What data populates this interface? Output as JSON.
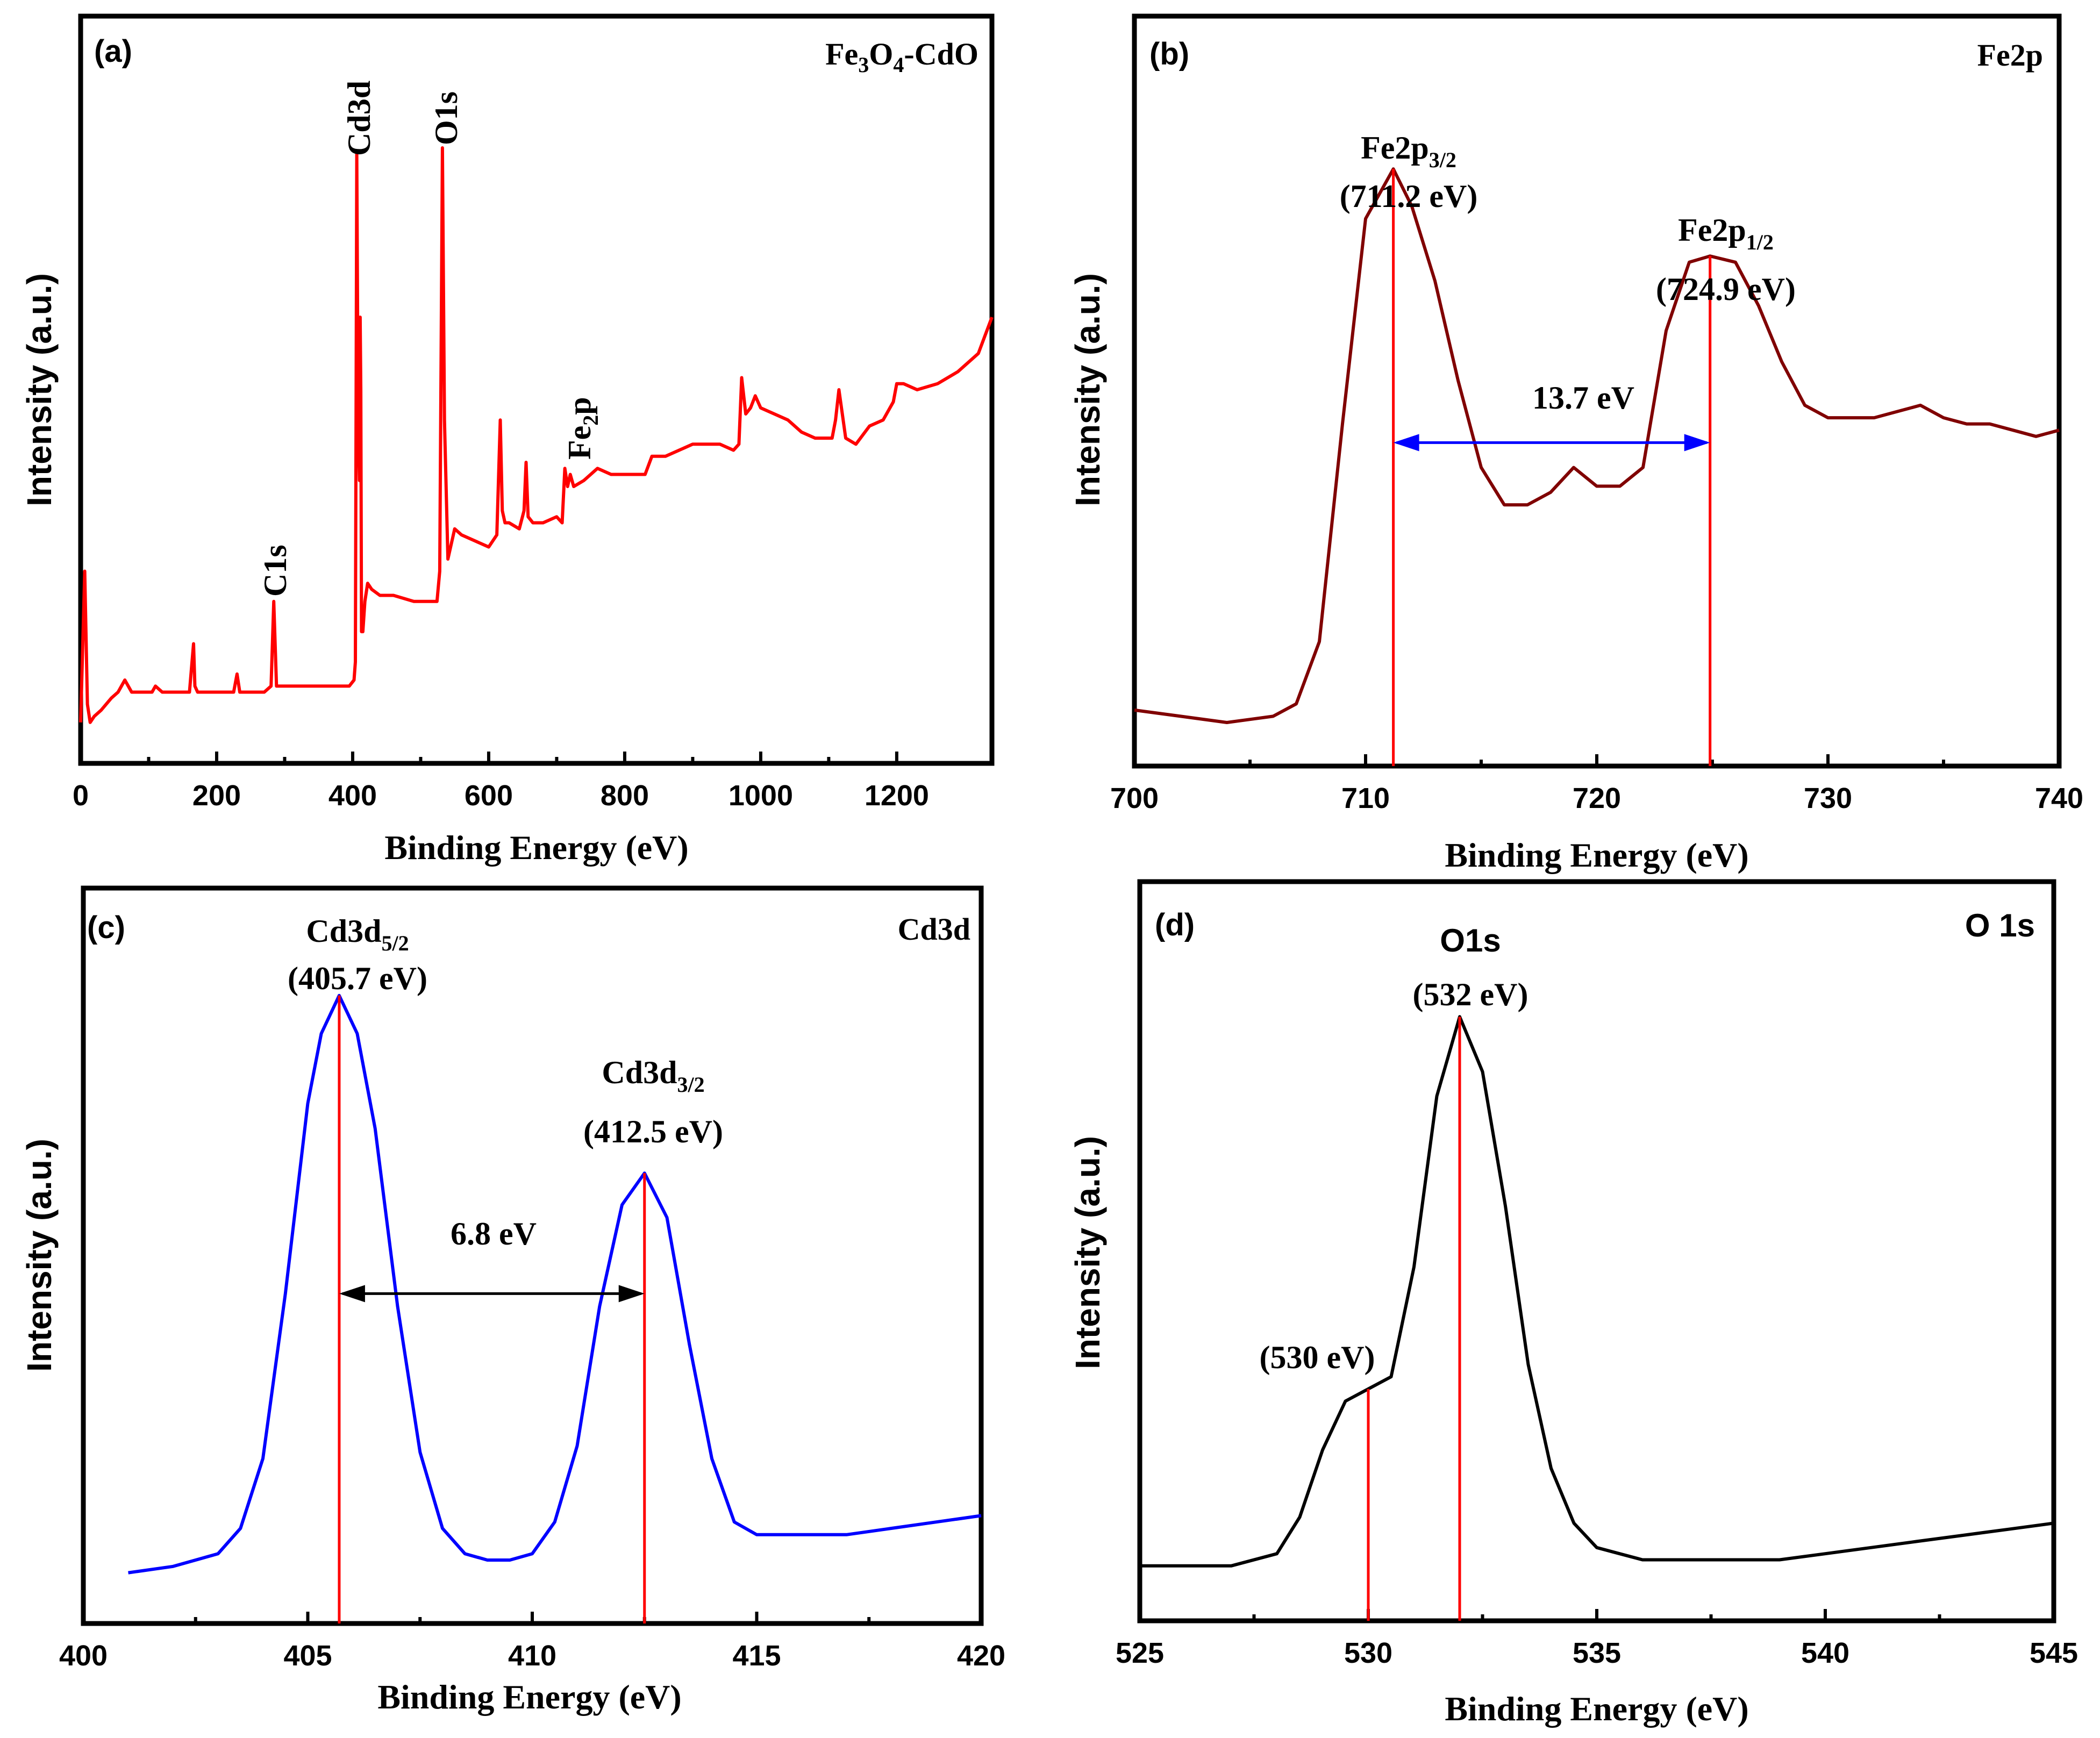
{
  "chart_data": [
    {
      "type": "line",
      "panel_id": "(a)",
      "title": "Fe3O4-CdO",
      "xlabel": "Binding Energy (eV)",
      "ylabel": "Intensity (a.u.)",
      "xlim": [
        0,
        1340
      ],
      "ylim": [
        0,
        1
      ],
      "xticks": [
        0,
        200,
        400,
        600,
        800,
        1000,
        1200
      ],
      "color": "#ff0000",
      "series": [
        {
          "name": "Fe3O4-CdO survey",
          "x": [
            0,
            6,
            10,
            14,
            20,
            30,
            45,
            55,
            65,
            75,
            90,
            105,
            110,
            120,
            140,
            160,
            166,
            168,
            172,
            180,
            200,
            225,
            230,
            234,
            238,
            250,
            270,
            280,
            284,
            288,
            295,
            310,
            340,
            370,
            395,
            402,
            404,
            406,
            408,
            410,
            411,
            412,
            413,
            415,
            418,
            422,
            428,
            440,
            460,
            490,
            510,
            524,
            528,
            530,
            532,
            535,
            540,
            550,
            560,
            580,
            600,
            612,
            617,
            620,
            624,
            630,
            645,
            652,
            655,
            658,
            665,
            680,
            700,
            708,
            712,
            716,
            720,
            725,
            740,
            760,
            780,
            800,
            820,
            830,
            840,
            860,
            880,
            900,
            920,
            940,
            960,
            968,
            972,
            978,
            985,
            992,
            1000,
            1020,
            1040,
            1060,
            1080,
            1095,
            1105,
            1110,
            1115,
            1125,
            1140,
            1160,
            1180,
            1195,
            1200,
            1210,
            1230,
            1260,
            1290,
            1320,
            1340
          ],
          "y": [
            0.05,
            0.3,
            0.08,
            0.05,
            0.06,
            0.07,
            0.09,
            0.1,
            0.12,
            0.1,
            0.1,
            0.1,
            0.11,
            0.1,
            0.1,
            0.1,
            0.18,
            0.11,
            0.1,
            0.1,
            0.1,
            0.1,
            0.13,
            0.1,
            0.1,
            0.1,
            0.1,
            0.11,
            0.25,
            0.11,
            0.11,
            0.11,
            0.11,
            0.11,
            0.11,
            0.12,
            0.15,
            0.99,
            0.55,
            0.45,
            0.72,
            0.6,
            0.2,
            0.2,
            0.25,
            0.28,
            0.27,
            0.26,
            0.26,
            0.25,
            0.25,
            0.25,
            0.3,
            0.65,
            1.0,
            0.55,
            0.32,
            0.37,
            0.36,
            0.35,
            0.34,
            0.36,
            0.55,
            0.4,
            0.38,
            0.38,
            0.37,
            0.4,
            0.48,
            0.39,
            0.38,
            0.38,
            0.39,
            0.38,
            0.47,
            0.44,
            0.46,
            0.44,
            0.45,
            0.47,
            0.46,
            0.46,
            0.46,
            0.46,
            0.49,
            0.49,
            0.5,
            0.51,
            0.51,
            0.51,
            0.5,
            0.51,
            0.62,
            0.56,
            0.57,
            0.59,
            0.57,
            0.56,
            0.55,
            0.53,
            0.52,
            0.52,
            0.52,
            0.55,
            0.6,
            0.52,
            0.51,
            0.54,
            0.55,
            0.58,
            0.61,
            0.61,
            0.6,
            0.61,
            0.63,
            0.66,
            0.72
          ]
        }
      ],
      "peak_labels": [
        {
          "text": "C1s",
          "x": 284
        },
        {
          "text": "Cd3d",
          "x": 406
        },
        {
          "text": "O1s",
          "x": 532
        },
        {
          "text": "Fe2p",
          "x": 712
        }
      ]
    },
    {
      "type": "line",
      "panel_id": "(b)",
      "title": "Fe2p",
      "xlabel": "Binding Energy (eV)",
      "ylabel": "Intensity (a.u.)",
      "xlim": [
        700,
        740
      ],
      "ylim": [
        0,
        1
      ],
      "xticks": [
        700,
        710,
        720,
        730,
        740
      ],
      "color": "#800000",
      "series": [
        {
          "name": "Fe2p",
          "x": [
            700,
            702,
            704,
            705,
            706,
            707,
            708,
            709,
            710,
            711.2,
            712,
            713,
            714,
            715,
            716,
            717,
            718,
            719,
            720,
            721,
            722,
            723,
            724,
            724.9,
            726,
            727,
            728,
            729,
            730,
            731,
            732,
            733,
            734,
            735,
            736,
            737,
            738,
            739,
            740
          ],
          "y": [
            0.09,
            0.08,
            0.07,
            0.075,
            0.08,
            0.1,
            0.2,
            0.55,
            0.88,
            0.96,
            0.9,
            0.78,
            0.62,
            0.48,
            0.42,
            0.42,
            0.44,
            0.48,
            0.45,
            0.45,
            0.48,
            0.7,
            0.81,
            0.82,
            0.81,
            0.74,
            0.65,
            0.58,
            0.56,
            0.56,
            0.56,
            0.57,
            0.58,
            0.56,
            0.55,
            0.55,
            0.54,
            0.53,
            0.54
          ]
        }
      ],
      "peaks": [
        {
          "label": "Fe2p3/2",
          "energy_label": "(711.2 eV)",
          "x": 711.2
        },
        {
          "label": "Fe2p1/2",
          "energy_label": "(724.9 eV)",
          "x": 724.9
        }
      ],
      "separation": {
        "label": "13.7 eV",
        "from": 711.2,
        "to": 724.9,
        "level": 0.52,
        "color": "#0000ff"
      }
    },
    {
      "type": "line",
      "panel_id": "(c)",
      "title": "Cd3d",
      "xlabel": "Binding Energy (eV)",
      "ylabel": "Intensity (a.u.)",
      "xlim": [
        400,
        420
      ],
      "ylim": [
        0,
        1
      ],
      "xticks": [
        400,
        405,
        410,
        415,
        420
      ],
      "color": "#0000ff",
      "series": [
        {
          "name": "Cd3d",
          "x": [
            401,
            402,
            403,
            403.5,
            404,
            404.5,
            405,
            405.3,
            405.7,
            406.1,
            406.5,
            407,
            407.5,
            408,
            408.5,
            409,
            409.5,
            410,
            410.5,
            411,
            411.5,
            412,
            412.5,
            413,
            413.5,
            414,
            414.5,
            415,
            416,
            417,
            418,
            419,
            420
          ],
          "y": [
            0.08,
            0.09,
            0.11,
            0.15,
            0.26,
            0.52,
            0.82,
            0.93,
            0.99,
            0.93,
            0.78,
            0.5,
            0.27,
            0.15,
            0.11,
            0.1,
            0.1,
            0.11,
            0.16,
            0.28,
            0.5,
            0.66,
            0.71,
            0.64,
            0.44,
            0.26,
            0.16,
            0.14,
            0.14,
            0.14,
            0.15,
            0.16,
            0.17
          ]
        }
      ],
      "peaks": [
        {
          "label": "Cd3d5/2",
          "energy_label": "(405.7 eV)",
          "x": 405.7
        },
        {
          "label": "Cd3d3/2",
          "energy_label": "(412.5 eV)",
          "x": 412.5
        }
      ],
      "separation": {
        "label": "6.8 eV",
        "from": 405.7,
        "to": 412.5,
        "level": 0.52,
        "color": "#000000"
      }
    },
    {
      "type": "line",
      "panel_id": "(d)",
      "title": "O 1s",
      "xlabel": "Binding Energy (eV)",
      "ylabel": "Intensity (a.u.)",
      "xlim": [
        525,
        545
      ],
      "ylim": [
        0,
        1
      ],
      "xticks": [
        525,
        530,
        535,
        540,
        545
      ],
      "color": "#000000",
      "series": [
        {
          "name": "O 1s",
          "x": [
            525,
            526,
            527,
            528,
            528.5,
            529,
            529.5,
            530,
            530.5,
            531,
            531.5,
            532,
            532.5,
            533,
            533.5,
            534,
            534.5,
            535,
            535.5,
            536,
            537,
            538,
            539,
            540,
            541,
            542,
            543,
            544,
            545
          ],
          "y": [
            0.09,
            0.09,
            0.09,
            0.11,
            0.17,
            0.28,
            0.36,
            0.38,
            0.4,
            0.58,
            0.86,
            0.99,
            0.9,
            0.68,
            0.42,
            0.25,
            0.16,
            0.12,
            0.11,
            0.1,
            0.1,
            0.1,
            0.1,
            0.11,
            0.12,
            0.13,
            0.14,
            0.15,
            0.16
          ]
        }
      ],
      "peaks": [
        {
          "label": "O1s",
          "energy_label": "(532 eV)",
          "x": 532
        },
        {
          "label": "",
          "energy_label": "(530 eV)",
          "x": 530
        }
      ]
    }
  ]
}
